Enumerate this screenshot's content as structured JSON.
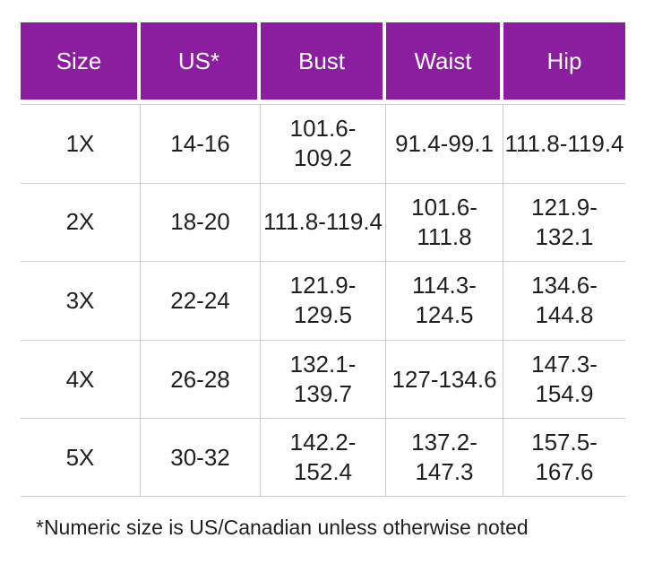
{
  "chart_data": {
    "type": "table",
    "columns": [
      "Size",
      "US*",
      "Bust",
      "Waist",
      "Hip"
    ],
    "rows": [
      [
        "1X",
        "14-16",
        "101.6-109.2",
        "91.4-99.1",
        "111.8-119.4"
      ],
      [
        "2X",
        "18-20",
        "111.8-119.4",
        "101.6-111.8",
        "121.9-132.1"
      ],
      [
        "3X",
        "22-24",
        "121.9-129.5",
        "114.3-124.5",
        "134.6-144.8"
      ],
      [
        "4X",
        "26-28",
        "132.1-139.7",
        "127-134.6",
        "147.3-154.9"
      ],
      [
        "5X",
        "30-32",
        "142.2-152.4",
        "137.2-147.3",
        "157.5-167.6"
      ]
    ],
    "footnote": "*Numeric size is US/Canadian unless otherwise noted"
  },
  "table": {
    "header": {
      "size": "Size",
      "us": "US*",
      "bust": "Bust",
      "waist": "Waist",
      "hip": "Hip"
    },
    "rows": [
      {
        "size": "1X",
        "us": "14-16",
        "bust": "101.6-\n109.2",
        "waist": "91.4-99.1",
        "hip": "111.8-119.4"
      },
      {
        "size": "2X",
        "us": "18-20",
        "bust": "111.8-119.4",
        "waist": "101.6-111.8",
        "hip": "121.9-132.1"
      },
      {
        "size": "3X",
        "us": "22-24",
        "bust": "121.9-\n129.5",
        "waist": "114.3-\n124.5",
        "hip": "134.6-\n144.8"
      },
      {
        "size": "4X",
        "us": "26-28",
        "bust": "132.1-\n139.7",
        "waist": "127-134.6",
        "hip": "147.3-\n154.9"
      },
      {
        "size": "5X",
        "us": "30-32",
        "bust": "142.2-\n152.4",
        "waist": "137.2-\n147.3",
        "hip": "157.5-\n167.6"
      }
    ]
  },
  "footnote": "*Numeric size is US/Canadian unless otherwise noted",
  "colors": {
    "header_bg": "#8B1E9E",
    "header_text": "#FFFFFF",
    "grid_line": "#CCCCCC",
    "body_text": "#1F1F1F",
    "background": "#FFFFFF"
  }
}
